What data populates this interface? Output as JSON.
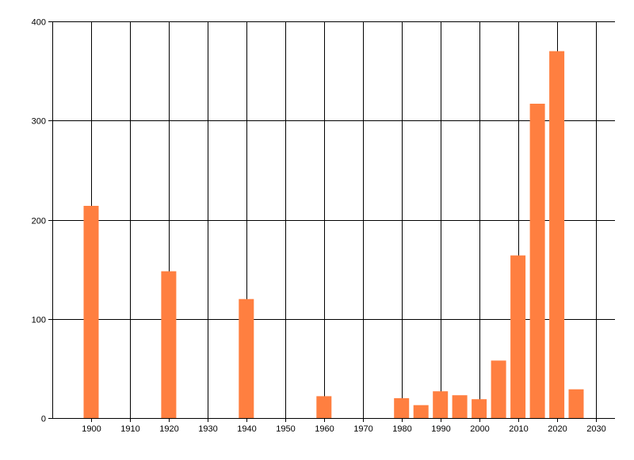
{
  "chart_data": {
    "type": "bar",
    "title": "",
    "xlabel": "",
    "ylabel": "",
    "xlim": [
      1890,
      2035
    ],
    "ylim": [
      0,
      400
    ],
    "x_ticks": [
      1900,
      1910,
      1920,
      1930,
      1940,
      1950,
      1960,
      1970,
      1980,
      1990,
      2000,
      2010,
      2020,
      2030
    ],
    "y_ticks": [
      0,
      100,
      200,
      300,
      400
    ],
    "grid": true,
    "bar_color": "#FF7F40",
    "series": [
      {
        "x": [
          1900,
          1920,
          1940,
          1960,
          1980,
          1985,
          1990,
          1995,
          2000,
          2005,
          2010,
          2015,
          2020,
          2025
        ],
        "values": [
          214,
          148,
          120,
          22,
          20,
          13,
          27,
          23,
          19,
          58,
          164,
          317,
          370,
          29
        ]
      }
    ]
  }
}
